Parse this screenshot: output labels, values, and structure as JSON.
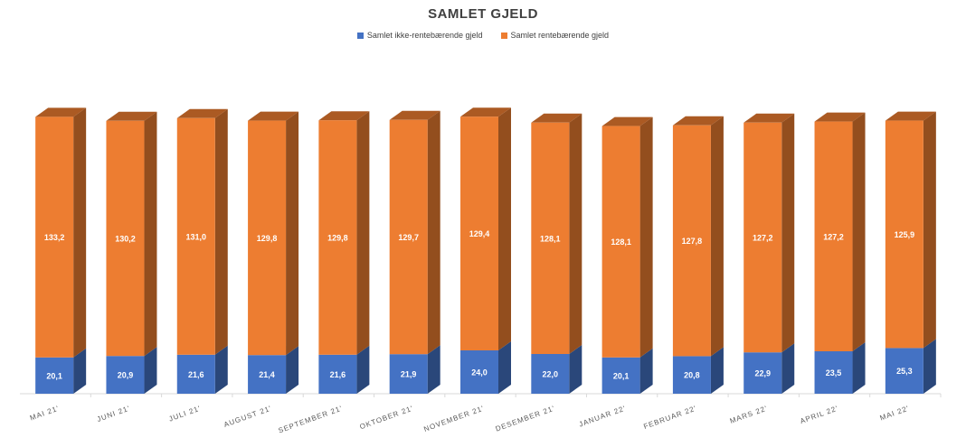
{
  "chart_data": {
    "type": "bar",
    "stacked": true,
    "style": "3d",
    "title": "SAMLET GJELD",
    "categories": [
      "MAI 21'",
      "JUNI 21'",
      "JULI 21'",
      "AUGUST 21'",
      "SEPTEMBER 21'",
      "OKTOBER 21'",
      "NOVEMBER 21'",
      "DESEMBER 21'",
      "JANUAR 22'",
      "FEBRUAR 22'",
      "MARS 22'",
      "APRIL 22'",
      "MAI 22'"
    ],
    "series": [
      {
        "name": "Samlet ikke-rentebærende gjeld",
        "color": "#4472C4",
        "values": [
          20.1,
          20.9,
          21.6,
          21.4,
          21.6,
          21.9,
          24.0,
          22.0,
          20.1,
          20.8,
          22.9,
          23.5,
          25.3
        ],
        "labels": [
          "20,1",
          "20,9",
          "21,6",
          "21,4",
          "21,6",
          "21,9",
          "24,0",
          "22,0",
          "20,1",
          "20,8",
          "22,9",
          "23,5",
          "25,3"
        ]
      },
      {
        "name": "Samlet rentebærende gjeld",
        "color": "#ED7D31",
        "values": [
          133.2,
          130.2,
          131.0,
          129.8,
          129.8,
          129.7,
          129.4,
          128.1,
          128.1,
          127.8,
          127.2,
          127.2,
          125.9
        ],
        "labels": [
          "133,2",
          "130,2",
          "131,0",
          "129,8",
          "129,8",
          "129,7",
          "129,4",
          "128,1",
          "128,1",
          "127,8",
          "127,2",
          "127,2",
          "125,9"
        ]
      }
    ],
    "legend_position": "top",
    "grid": false
  }
}
